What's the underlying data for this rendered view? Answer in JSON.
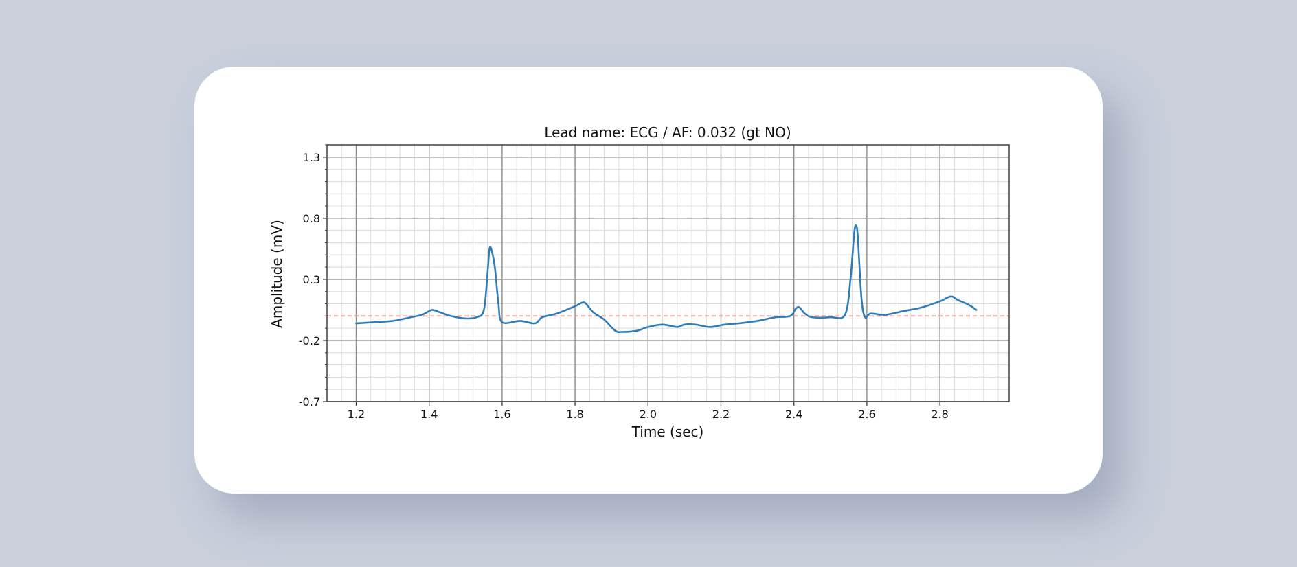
{
  "chart_data": {
    "type": "line",
    "title": "Lead name: ECG  / AF: 0.032 (gt NO)",
    "xlabel": "Time (sec)",
    "ylabel": "Amplitude (mV)",
    "xlim": [
      1.12,
      2.99
    ],
    "ylim": [
      -0.7,
      1.4
    ],
    "xticks": [
      "1.2",
      "1.4",
      "1.6",
      "1.8",
      "2.0",
      "2.2",
      "2.4",
      "2.6",
      "2.8"
    ],
    "yticks": [
      "1.3",
      "0.8",
      "0.3",
      "-0.2",
      "-0.7"
    ],
    "xtick_values": [
      1.2,
      1.4,
      1.6,
      1.8,
      2.0,
      2.2,
      2.4,
      2.6,
      2.8
    ],
    "ytick_values": [
      1.3,
      0.8,
      0.3,
      -0.2,
      -0.7
    ],
    "grid": true,
    "series": [
      {
        "color": "#2e7cb8",
        "x": [
          1.2,
          1.25,
          1.3,
          1.35,
          1.38,
          1.4,
          1.41,
          1.43,
          1.46,
          1.5,
          1.53,
          1.55,
          1.56,
          1.565,
          1.57,
          1.58,
          1.59,
          1.6,
          1.65,
          1.69,
          1.71,
          1.75,
          1.8,
          1.82,
          1.83,
          1.85,
          1.88,
          1.91,
          1.93,
          1.97,
          2.0,
          2.04,
          2.08,
          2.1,
          2.13,
          2.17,
          2.21,
          2.25,
          2.3,
          2.35,
          2.39,
          2.405,
          2.415,
          2.43,
          2.45,
          2.5,
          2.54,
          2.555,
          2.565,
          2.57,
          2.575,
          2.585,
          2.595,
          2.61,
          2.65,
          2.7,
          2.75,
          2.8,
          2.83,
          2.85,
          2.88,
          2.9
        ],
        "y": [
          -0.06,
          -0.05,
          -0.04,
          -0.01,
          0.01,
          0.04,
          0.05,
          0.03,
          0.0,
          -0.02,
          -0.01,
          0.05,
          0.35,
          0.54,
          0.55,
          0.4,
          0.1,
          -0.05,
          -0.04,
          -0.06,
          -0.01,
          0.02,
          0.08,
          0.11,
          0.1,
          0.03,
          -0.03,
          -0.12,
          -0.13,
          -0.12,
          -0.09,
          -0.07,
          -0.09,
          -0.07,
          -0.07,
          -0.09,
          -0.07,
          -0.06,
          -0.04,
          -0.01,
          0.0,
          0.06,
          0.07,
          0.02,
          -0.01,
          -0.01,
          0.01,
          0.3,
          0.67,
          0.74,
          0.65,
          0.15,
          -0.01,
          0.02,
          0.01,
          0.04,
          0.07,
          0.12,
          0.16,
          0.13,
          0.09,
          0.05
        ]
      }
    ],
    "reference_line": {
      "y": 0.0,
      "color": "#e8897c",
      "style": "dashed"
    }
  }
}
